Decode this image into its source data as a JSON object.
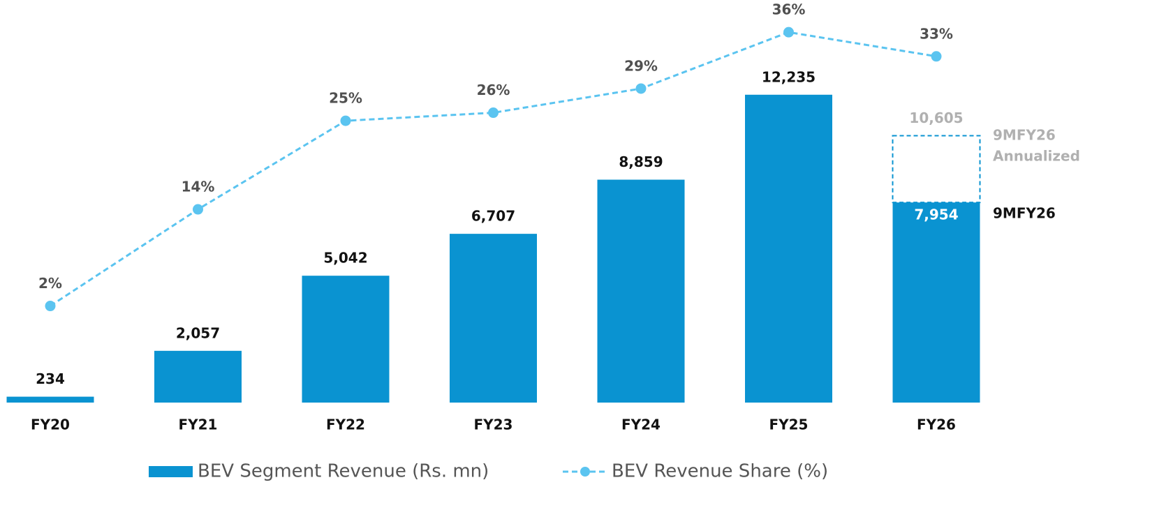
{
  "chart_data": {
    "type": "bar_line",
    "categories": [
      "FY20",
      "FY21",
      "FY22",
      "FY23",
      "FY24",
      "FY25",
      "FY26"
    ],
    "series": [
      {
        "name": "BEV Segment Revenue (Rs. mn)",
        "type": "bar",
        "color": "#0a93d1",
        "values": [
          234,
          2057,
          5042,
          6707,
          8859,
          12235,
          7954
        ],
        "value_labels": [
          "234",
          "2,057",
          "5,042",
          "6,707",
          "8,859",
          "12,235",
          "7,954"
        ]
      },
      {
        "name": "BEV Revenue Share (%)",
        "type": "line",
        "axis": "y2",
        "color": "#5bc4f0",
        "values": [
          2,
          14,
          25,
          26,
          29,
          36,
          33
        ],
        "value_labels": [
          "2%",
          "14%",
          "25%",
          "26%",
          "29%",
          "36%",
          "33%"
        ]
      }
    ],
    "annualized": {
      "value": 10605,
      "value_label": "10,605",
      "label": [
        "9MFY26",
        "Annualized"
      ],
      "color": "#b0b0b0"
    },
    "actual_label": "9MFY26",
    "ylim": [
      0,
      16000
    ],
    "y2lim": [
      -10,
      40
    ],
    "grid": false
  }
}
